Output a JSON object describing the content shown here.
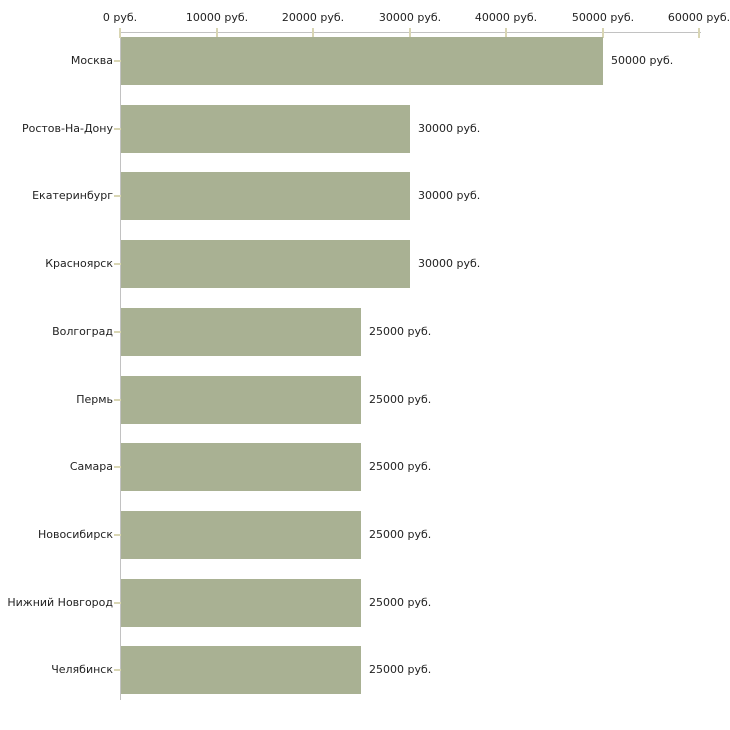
{
  "chart_data": {
    "type": "bar",
    "orientation": "horizontal",
    "title": "",
    "xlabel": "",
    "ylabel": "",
    "unit": "руб.",
    "categories": [
      "Москва",
      "Ростов-На-Дону",
      "Екатеринбург",
      "Красноярск",
      "Волгоград",
      "Пермь",
      "Самара",
      "Новосибирск",
      "Нижний Новгород",
      "Челябинск"
    ],
    "values": [
      50000,
      30000,
      30000,
      30000,
      25000,
      25000,
      25000,
      25000,
      25000,
      25000
    ],
    "bar_labels": [
      "50000 руб.",
      "30000 руб.",
      "30000 руб.",
      "30000 руб.",
      "25000 руб.",
      "25000 руб.",
      "25000 руб.",
      "25000 руб.",
      "25000 руб.",
      "25000 руб."
    ],
    "x_tick_values": [
      0,
      10000,
      20000,
      30000,
      40000,
      50000,
      60000
    ],
    "x_tick_labels": [
      "0 руб.",
      "10000 руб.",
      "20000 руб.",
      "30000 руб.",
      "40000 руб.",
      "50000 руб.",
      "60000 руб."
    ],
    "xlim": [
      0,
      60000
    ],
    "grid": false,
    "legend": "none",
    "axis_position": "top-left",
    "colors": {
      "bar": "#a9b193",
      "axis": "#c2c2c2",
      "tick": "#d9d6b4",
      "text": "#222222",
      "background": "#ffffff"
    }
  }
}
